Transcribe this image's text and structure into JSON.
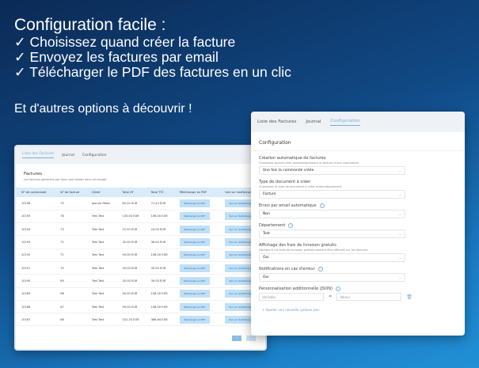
{
  "hero": {
    "title": "Configuration facile :",
    "lines": [
      "✓ Choisissez quand créer la facture",
      "✓ Envoyez les factures par email",
      "✓ Télécharger le PDF des factures en un clic"
    ],
    "more": "Et d'autres options à découvrir !"
  },
  "tabs": [
    "Liste des Factures",
    "Journal",
    "Configuration"
  ],
  "list": {
    "title": "Factures",
    "subtitle": "Les factures générées par Vous sont listées dans cet onglet",
    "columns": [
      "N° de commande",
      "N° de facture",
      "Client",
      "Total HT",
      "Total TTC",
      "Télécharger en PDF",
      "Voir sur VosFactures"
    ],
    "pdf_label": "Télécharger en PDF",
    "view_label": "Voir sur VosFactures",
    "rows": [
      [
        "10196",
        "75",
        "Joanne Pâtes",
        "62.02 EUR",
        "71.42 EUR"
      ],
      [
        "10195",
        "76",
        "Test Test",
        "130.00 EUR",
        "156.00 EUR"
      ],
      [
        "10194",
        "73",
        "Test Test",
        "22.50 EUR",
        "24.00 EUR"
      ],
      [
        "10193",
        "72",
        "Test Test",
        "35.00 EUR",
        "36.00 EUR"
      ],
      [
        "10192",
        "71",
        "Test Test",
        "90.00 EUR",
        "108.00 EUR"
      ],
      [
        "10191",
        "70",
        "Test Test",
        "35.00 EUR",
        "39.00 EUR"
      ],
      [
        "10190",
        "69",
        "Test Test",
        "35.00 EUR",
        "39.00 EUR"
      ],
      [
        "10189",
        "68",
        "Test Test",
        "90.00 EUR",
        "108.00 EUR"
      ],
      [
        "10188",
        "67",
        "Test Test",
        "90.00 EUR",
        "108.00 EUR"
      ],
      [
        "10187",
        "66",
        "Test Test",
        "322.20 EUR",
        "386.64 EUR"
      ]
    ],
    "pager": [
      "‹",
      "›"
    ]
  },
  "config": {
    "heading": "Configuration",
    "fields": [
      {
        "label": "Création automatique de factures",
        "help": "Choisissez quand créer automatiquement la facture d'une commande",
        "value": "Une fois la commande créée",
        "info": false
      },
      {
        "label": "Type de document à créer",
        "help": "Choisissez le type de document à créer automatiquement",
        "value": "Facture",
        "info": false
      },
      {
        "label": "Envoi par email automatique",
        "help": "",
        "value": "Non",
        "info": true
      },
      {
        "label": "Département",
        "help": "",
        "value": "Test",
        "info": true
      },
      {
        "label": "Affichage des frais de livraison gratuits",
        "help": "Décidez si les frais de livraison gratuits doivent être affichés sur les factures",
        "value": "Oui",
        "info": false
      },
      {
        "label": "Notifications en cas d'erreur",
        "help": "",
        "value": "Oui",
        "info": true
      }
    ],
    "json_label": "Personnalisation additionnelle (JSON)",
    "var_placeholder": "Variable",
    "eq": "=",
    "val_placeholder": "Valeur",
    "add_label": "+ Ajouter une nouvelle syntaxe json"
  },
  "colors": {
    "accent": "#7aaedc",
    "header": "#d7ebfa",
    "button": "#bfe0f8"
  }
}
